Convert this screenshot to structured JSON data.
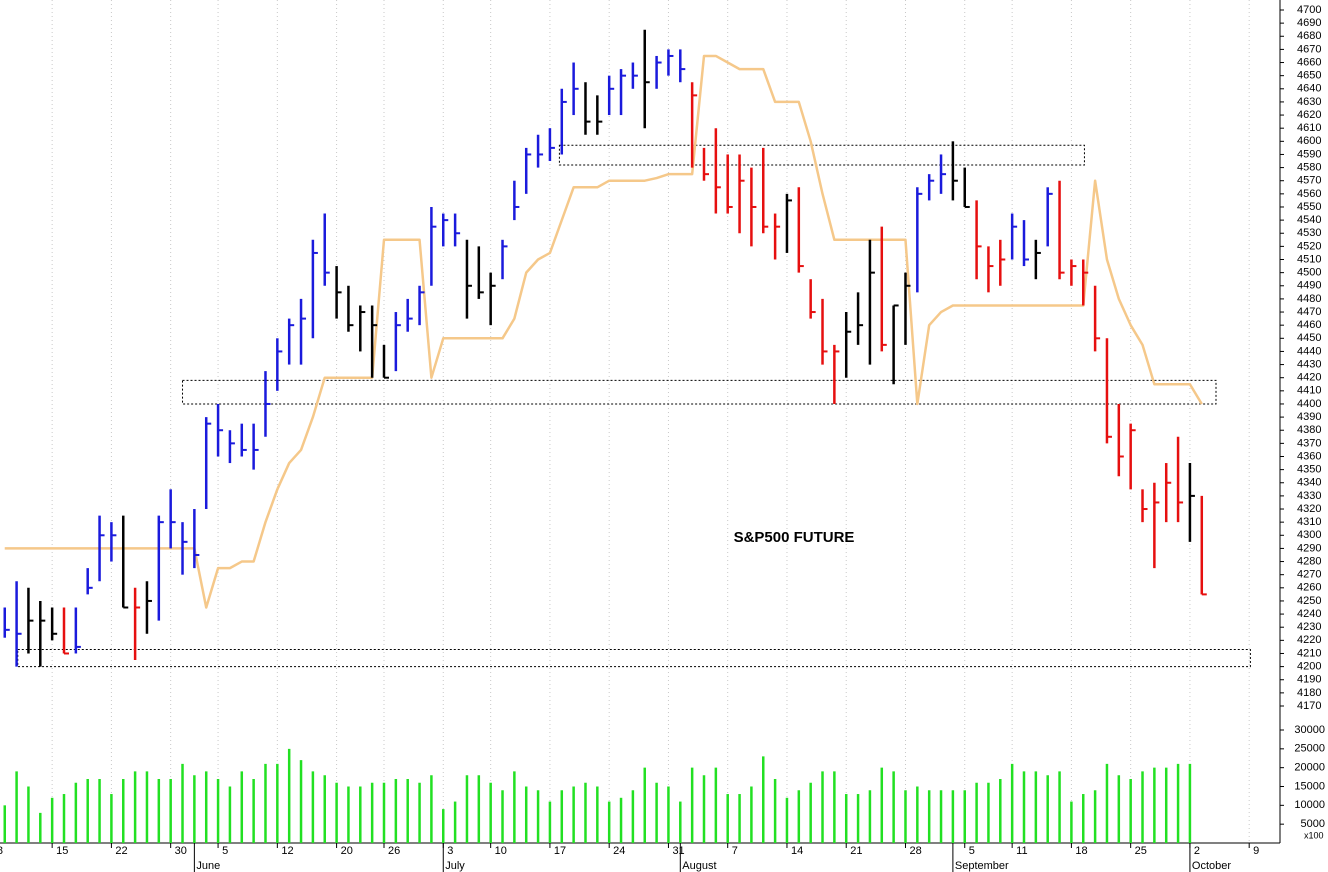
{
  "chart_data": {
    "type": "ohlc",
    "annotation": "S&P500 FUTURE",
    "high": [
      4245,
      4265,
      4260,
      4250,
      4245,
      4245,
      4245,
      4275,
      4315,
      4310,
      4315,
      4260,
      4265,
      4315,
      4335,
      4310,
      4320,
      4390,
      4400,
      4380,
      4385,
      4385,
      4425,
      4450,
      4465,
      4480,
      4525,
      4545,
      4505,
      4490,
      4475,
      4475,
      4445,
      4470,
      4480,
      4490,
      4550,
      4545,
      4545,
      4525,
      4520,
      4500,
      4525,
      4570,
      4595,
      4605,
      4610,
      4640,
      4660,
      4645,
      4635,
      4650,
      4655,
      4660,
      4685,
      4665,
      4670,
      4670,
      4645,
      4595,
      4610,
      4590,
      4590,
      4580,
      4595,
      4545,
      4560,
      4565,
      4495,
      4480,
      4445,
      4470,
      4485,
      4525,
      4535,
      4475,
      4500,
      4565,
      4575,
      4590,
      4600,
      4580,
      4555,
      4520,
      4525,
      4545,
      4540,
      4525,
      4565,
      4570,
      4510,
      4510,
      4490,
      4450,
      4400,
      4385,
      4335,
      4340,
      4355,
      4375,
      4355,
      4330
    ],
    "low": [
      4222,
      4200,
      4210,
      4200,
      4220,
      4210,
      4210,
      4255,
      4265,
      4280,
      4245,
      4205,
      4225,
      4235,
      4290,
      4270,
      4275,
      4320,
      4360,
      4355,
      4360,
      4350,
      4375,
      4410,
      4430,
      4430,
      4450,
      4490,
      4465,
      4455,
      4440,
      4420,
      4420,
      4425,
      4455,
      4460,
      4490,
      4520,
      4520,
      4465,
      4480,
      4460,
      4495,
      4540,
      4560,
      4580,
      4585,
      4590,
      4620,
      4605,
      4605,
      4620,
      4620,
      4640,
      4610,
      4640,
      4650,
      4645,
      4580,
      4570,
      4545,
      4545,
      4530,
      4520,
      4530,
      4510,
      4515,
      4500,
      4465,
      4430,
      4400,
      4420,
      4445,
      4430,
      4440,
      4415,
      4445,
      4485,
      4555,
      4560,
      4555,
      4550,
      4495,
      4485,
      4490,
      4510,
      4505,
      4495,
      4520,
      4495,
      4490,
      4475,
      4440,
      4370,
      4345,
      4335,
      4310,
      4275,
      4310,
      4310,
      4295,
      4255
    ],
    "close": [
      4228,
      4225,
      4235,
      4235,
      4225,
      4210,
      4215,
      4260,
      4300,
      4300,
      4245,
      4245,
      4250,
      4310,
      4310,
      4295,
      4285,
      4385,
      4380,
      4370,
      4365,
      4365,
      4400,
      4440,
      4460,
      4465,
      4515,
      4500,
      4485,
      4460,
      4470,
      4460,
      4420,
      4460,
      4465,
      4485,
      4535,
      4540,
      4530,
      4490,
      4485,
      4490,
      4520,
      4550,
      4590,
      4590,
      4595,
      4630,
      4640,
      4615,
      4615,
      4640,
      4650,
      4650,
      4645,
      4660,
      4665,
      4655,
      4635,
      4575,
      4565,
      4550,
      4570,
      4550,
      4535,
      4535,
      4555,
      4505,
      4470,
      4440,
      4440,
      4455,
      4460,
      4500,
      4445,
      4475,
      4490,
      4560,
      4570,
      4575,
      4570,
      4550,
      4520,
      4505,
      4510,
      4535,
      4510,
      4515,
      4560,
      4500,
      4505,
      4500,
      4450,
      4375,
      4360,
      4380,
      4320,
      4325,
      4340,
      4325,
      4330,
      4255
    ],
    "bar_colors": [
      "#1a1adc",
      "#1a1adc",
      "#000000",
      "#000000",
      "#000000",
      "#e60f0f",
      "#1a1adc",
      "#1a1adc",
      "#1a1adc",
      "#1a1adc",
      "#000000",
      "#e60f0f",
      "#000000",
      "#1a1adc",
      "#1a1adc",
      "#1a1adc",
      "#1a1adc",
      "#1a1adc",
      "#1a1adc",
      "#1a1adc",
      "#1a1adc",
      "#1a1adc",
      "#1a1adc",
      "#1a1adc",
      "#1a1adc",
      "#1a1adc",
      "#1a1adc",
      "#1a1adc",
      "#000000",
      "#000000",
      "#000000",
      "#000000",
      "#000000",
      "#1a1adc",
      "#1a1adc",
      "#1a1adc",
      "#1a1adc",
      "#1a1adc",
      "#1a1adc",
      "#000000",
      "#000000",
      "#000000",
      "#1a1adc",
      "#1a1adc",
      "#1a1adc",
      "#1a1adc",
      "#1a1adc",
      "#1a1adc",
      "#1a1adc",
      "#000000",
      "#000000",
      "#1a1adc",
      "#1a1adc",
      "#1a1adc",
      "#000000",
      "#1a1adc",
      "#1a1adc",
      "#1a1adc",
      "#e60f0f",
      "#e60f0f",
      "#e60f0f",
      "#e60f0f",
      "#e60f0f",
      "#e60f0f",
      "#e60f0f",
      "#e60f0f",
      "#000000",
      "#e60f0f",
      "#e60f0f",
      "#e60f0f",
      "#e60f0f",
      "#000000",
      "#000000",
      "#000000",
      "#e60f0f",
      "#000000",
      "#000000",
      "#1a1adc",
      "#1a1adc",
      "#1a1adc",
      "#000000",
      "#000000",
      "#e60f0f",
      "#e60f0f",
      "#e60f0f",
      "#1a1adc",
      "#1a1adc",
      "#000000",
      "#1a1adc",
      "#e60f0f",
      "#e60f0f",
      "#e60f0f",
      "#e60f0f",
      "#e60f0f",
      "#e60f0f",
      "#e60f0f",
      "#e60f0f",
      "#e60f0f",
      "#e60f0f",
      "#e60f0f",
      "#000000",
      "#e60f0f"
    ],
    "stop": [
      4290,
      4290,
      4290,
      4290,
      4290,
      4290,
      4290,
      4290,
      4290,
      4290,
      4290,
      4290,
      4290,
      4290,
      4290,
      4290,
      4290,
      4245,
      4275,
      4275,
      4280,
      4280,
      4310,
      4335,
      4355,
      4365,
      4390,
      4420,
      4420,
      4420,
      4420,
      4420,
      4525,
      4525,
      4525,
      4525,
      4420,
      4450,
      4450,
      4450,
      4450,
      4450,
      4450,
      4465,
      4500,
      4510,
      4515,
      4540,
      4565,
      4565,
      4565,
      4570,
      4570,
      4570,
      4570,
      4572,
      4575,
      4575,
      4575,
      4665,
      4665,
      4660,
      4655,
      4655,
      4655,
      4630,
      4630,
      4630,
      4600,
      4560,
      4525,
      4525,
      4525,
      4525,
      4525,
      4525,
      4525,
      4400,
      4460,
      4470,
      4475,
      4475,
      4475,
      4475,
      4475,
      4475,
      4475,
      4475,
      4475,
      4475,
      4475,
      4475,
      4570,
      4510,
      4480,
      4460,
      4445,
      4415,
      4415,
      4415,
      4415,
      4400
    ],
    "stop_color": "#f5c88a",
    "volume": [
      10000,
      19000,
      15000,
      8000,
      12000,
      13000,
      16000,
      17000,
      17000,
      13000,
      17000,
      19000,
      19000,
      17000,
      17000,
      21000,
      18000,
      19000,
      17000,
      15000,
      19000,
      17000,
      21000,
      21000,
      25000,
      22000,
      19000,
      18000,
      16000,
      15000,
      15000,
      16000,
      16000,
      17000,
      17000,
      16000,
      18000,
      9000,
      11000,
      18000,
      18000,
      16000,
      14000,
      19000,
      15000,
      14000,
      11000,
      14000,
      15000,
      16000,
      15000,
      11000,
      12000,
      14000,
      20000,
      16000,
      15000,
      11000,
      20000,
      18000,
      20000,
      13000,
      13000,
      15000,
      23000,
      17000,
      12000,
      14000,
      16000,
      19000,
      19000,
      13000,
      13000,
      14000,
      20000,
      19000,
      14000,
      15000,
      14000,
      14000,
      14000,
      14000,
      16000,
      16000,
      17000,
      21000,
      19000,
      19000,
      18000,
      19000,
      11000,
      13000,
      14000,
      21000,
      18000,
      17000,
      19000,
      20000,
      20000,
      21000,
      21000,
      null
    ],
    "volume_color": "#22e022",
    "volume_unit_label": "x100",
    "zones": [
      {
        "low": 4582,
        "high": 4597,
        "start": 46.8,
        "end": 91.1
      },
      {
        "low": 4400,
        "high": 4418,
        "start": 15,
        "end": 102.2
      },
      {
        "low": 4200,
        "high": 4213,
        "start": 1.1,
        "end": 105.1
      }
    ],
    "xlim": [
      -0.4,
      107.6
    ],
    "ylim": [
      4170,
      4700
    ],
    "yticks": [
      4700,
      4690,
      4680,
      4670,
      4660,
      4650,
      4640,
      4630,
      4620,
      4610,
      4600,
      4590,
      4580,
      4570,
      4560,
      4550,
      4540,
      4530,
      4520,
      4510,
      4500,
      4490,
      4480,
      4470,
      4460,
      4450,
      4440,
      4430,
      4420,
      4410,
      4400,
      4390,
      4380,
      4370,
      4360,
      4350,
      4340,
      4330,
      4320,
      4310,
      4300,
      4290,
      4280,
      4270,
      4260,
      4250,
      4240,
      4230,
      4220,
      4210,
      4200,
      4190,
      4180,
      4170
    ],
    "volume_ylim": [
      0,
      30000
    ],
    "volume_ticks": [
      30000,
      25000,
      20000,
      15000,
      10000,
      5000
    ],
    "xticks": [
      {
        "value": -1,
        "label": "8"
      },
      {
        "value": 4,
        "label": "15"
      },
      {
        "value": 9,
        "label": "22"
      },
      {
        "value": 14,
        "label": "30"
      },
      {
        "value": 18,
        "label": "5"
      },
      {
        "value": 23,
        "label": "12"
      },
      {
        "value": 28,
        "label": "20"
      },
      {
        "value": 32,
        "label": "26"
      },
      {
        "value": 37,
        "label": "3"
      },
      {
        "value": 41,
        "label": "10"
      },
      {
        "value": 46,
        "label": "17"
      },
      {
        "value": 51,
        "label": "24"
      },
      {
        "value": 56,
        "label": "31"
      },
      {
        "value": 61,
        "label": "7"
      },
      {
        "value": 66,
        "label": "14"
      },
      {
        "value": 71,
        "label": "21"
      },
      {
        "value": 76,
        "label": "28"
      },
      {
        "value": 81,
        "label": "5"
      },
      {
        "value": 85,
        "label": "11"
      },
      {
        "value": 90,
        "label": "18"
      },
      {
        "value": 95,
        "label": "25"
      },
      {
        "value": 100,
        "label": "2"
      },
      {
        "value": 105,
        "label": "9"
      }
    ],
    "month_ticks": [
      {
        "value": 16,
        "label": "June"
      },
      {
        "value": 37,
        "label": "July"
      },
      {
        "value": 57,
        "label": "August"
      },
      {
        "value": 80,
        "label": "September"
      },
      {
        "value": 100,
        "label": "October"
      }
    ],
    "grid": true
  }
}
